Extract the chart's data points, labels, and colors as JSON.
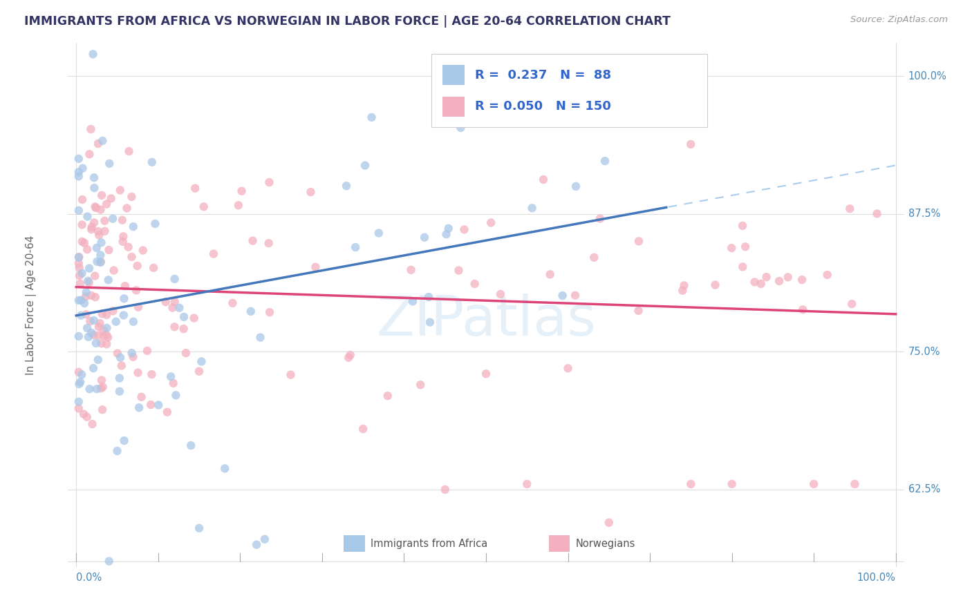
{
  "title": "IMMIGRANTS FROM AFRICA VS NORWEGIAN IN LABOR FORCE | AGE 20-64 CORRELATION CHART",
  "source": "Source: ZipAtlas.com",
  "ylabel": "In Labor Force | Age 20-64",
  "color_blue": "#a8c8e8",
  "color_pink": "#f4b0c0",
  "line_blue": "#4477bb",
  "line_pink": "#dd4477",
  "line_dashed_color": "#aaccee",
  "watermark": "ZIPatlas",
  "r_blue": 0.237,
  "n_blue": 88,
  "r_pink": 0.05,
  "n_pink": 150,
  "y_ticks": [
    0.625,
    0.75,
    0.875,
    1.0
  ],
  "y_tick_labels": [
    "62.5%",
    "75.0%",
    "87.5%",
    "100.0%"
  ],
  "xlim": [
    0.0,
    1.0
  ],
  "ylim": [
    0.555,
    1.03
  ],
  "title_color": "#333366",
  "axis_label_color": "#4488bb",
  "grid_color": "#dddddd",
  "ylabel_color": "#666666"
}
